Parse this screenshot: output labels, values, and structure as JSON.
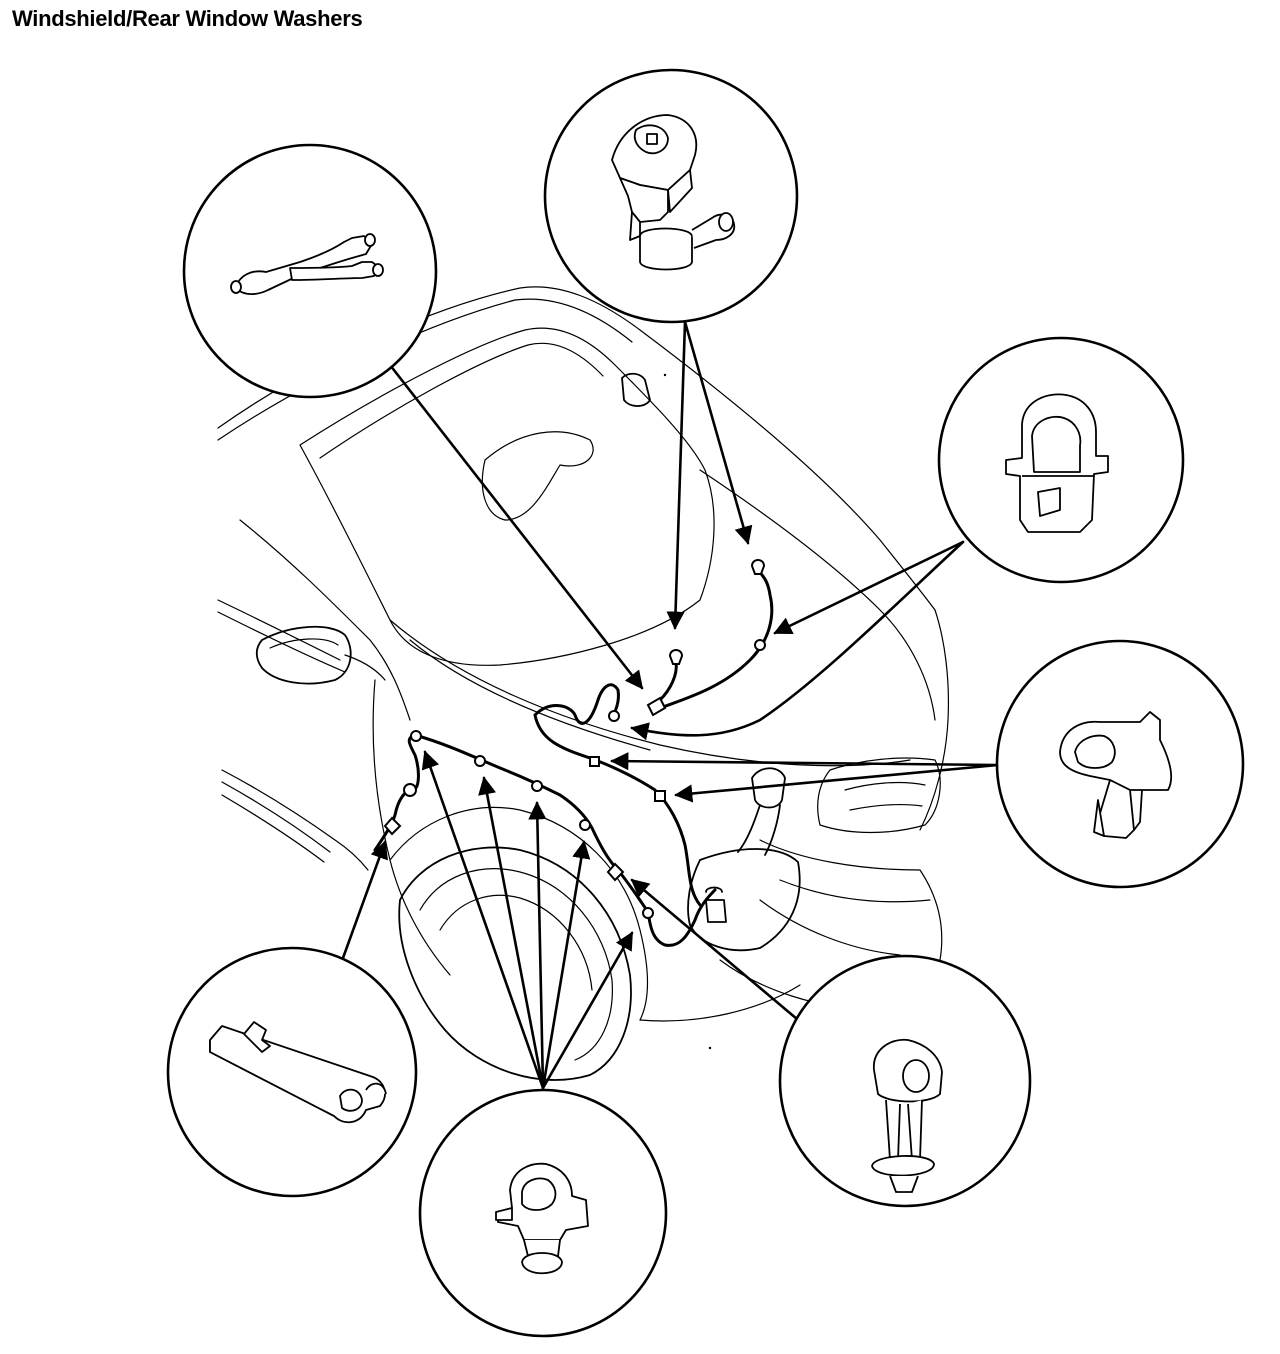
{
  "title": "Windshield/Rear Window Washers",
  "callouts": [
    {
      "id": "hose-joint",
      "icon": "hose-joint-icon"
    },
    {
      "id": "washer-nozzle",
      "icon": "washer-nozzle-icon"
    },
    {
      "id": "hose-clip-upper",
      "icon": "hose-clip-icon"
    },
    {
      "id": "hose-clamp-right",
      "icon": "hose-clamp-icon"
    },
    {
      "id": "hose-holder-lower-right",
      "icon": "hose-holder-icon"
    },
    {
      "id": "hose-clip-lower",
      "icon": "hose-clip-icon"
    },
    {
      "id": "hose-holder-left",
      "icon": "hose-holder-icon"
    }
  ]
}
